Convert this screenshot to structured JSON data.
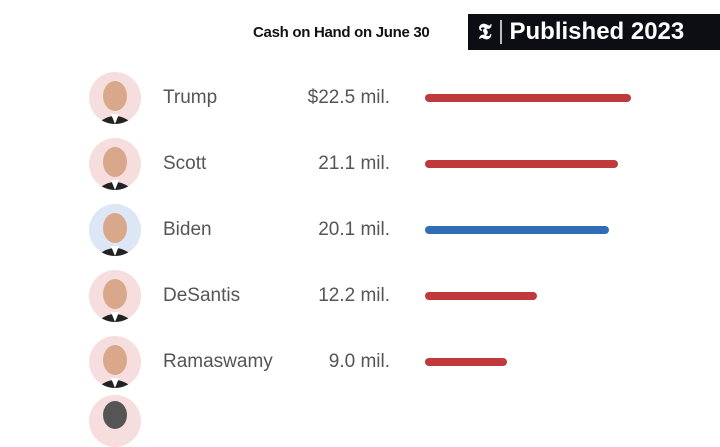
{
  "header": {
    "subtitle": "Cash on Hand on June 30",
    "badge_logo": "𝕿",
    "badge_text": "Published 2023"
  },
  "colors": {
    "republican": "#c0393b",
    "democrat": "#2f6db5",
    "rep_bg": "#f6dede",
    "dem_bg": "#dde6f4"
  },
  "chart_data": {
    "type": "bar",
    "title": "Cash on Hand on June 30",
    "categories": [
      "Trump",
      "Scott",
      "Biden",
      "DeSantis",
      "Ramaswamy"
    ],
    "values": [
      22.5,
      21.1,
      20.1,
      12.2,
      9.0
    ],
    "value_labels": [
      "$22.5 mil.",
      "21.1 mil.",
      "20.1 mil.",
      "12.2 mil.",
      "9.0 mil."
    ],
    "party": [
      "R",
      "R",
      "D",
      "R",
      "R"
    ],
    "unit": "million dollars",
    "orientation": "horizontal"
  }
}
